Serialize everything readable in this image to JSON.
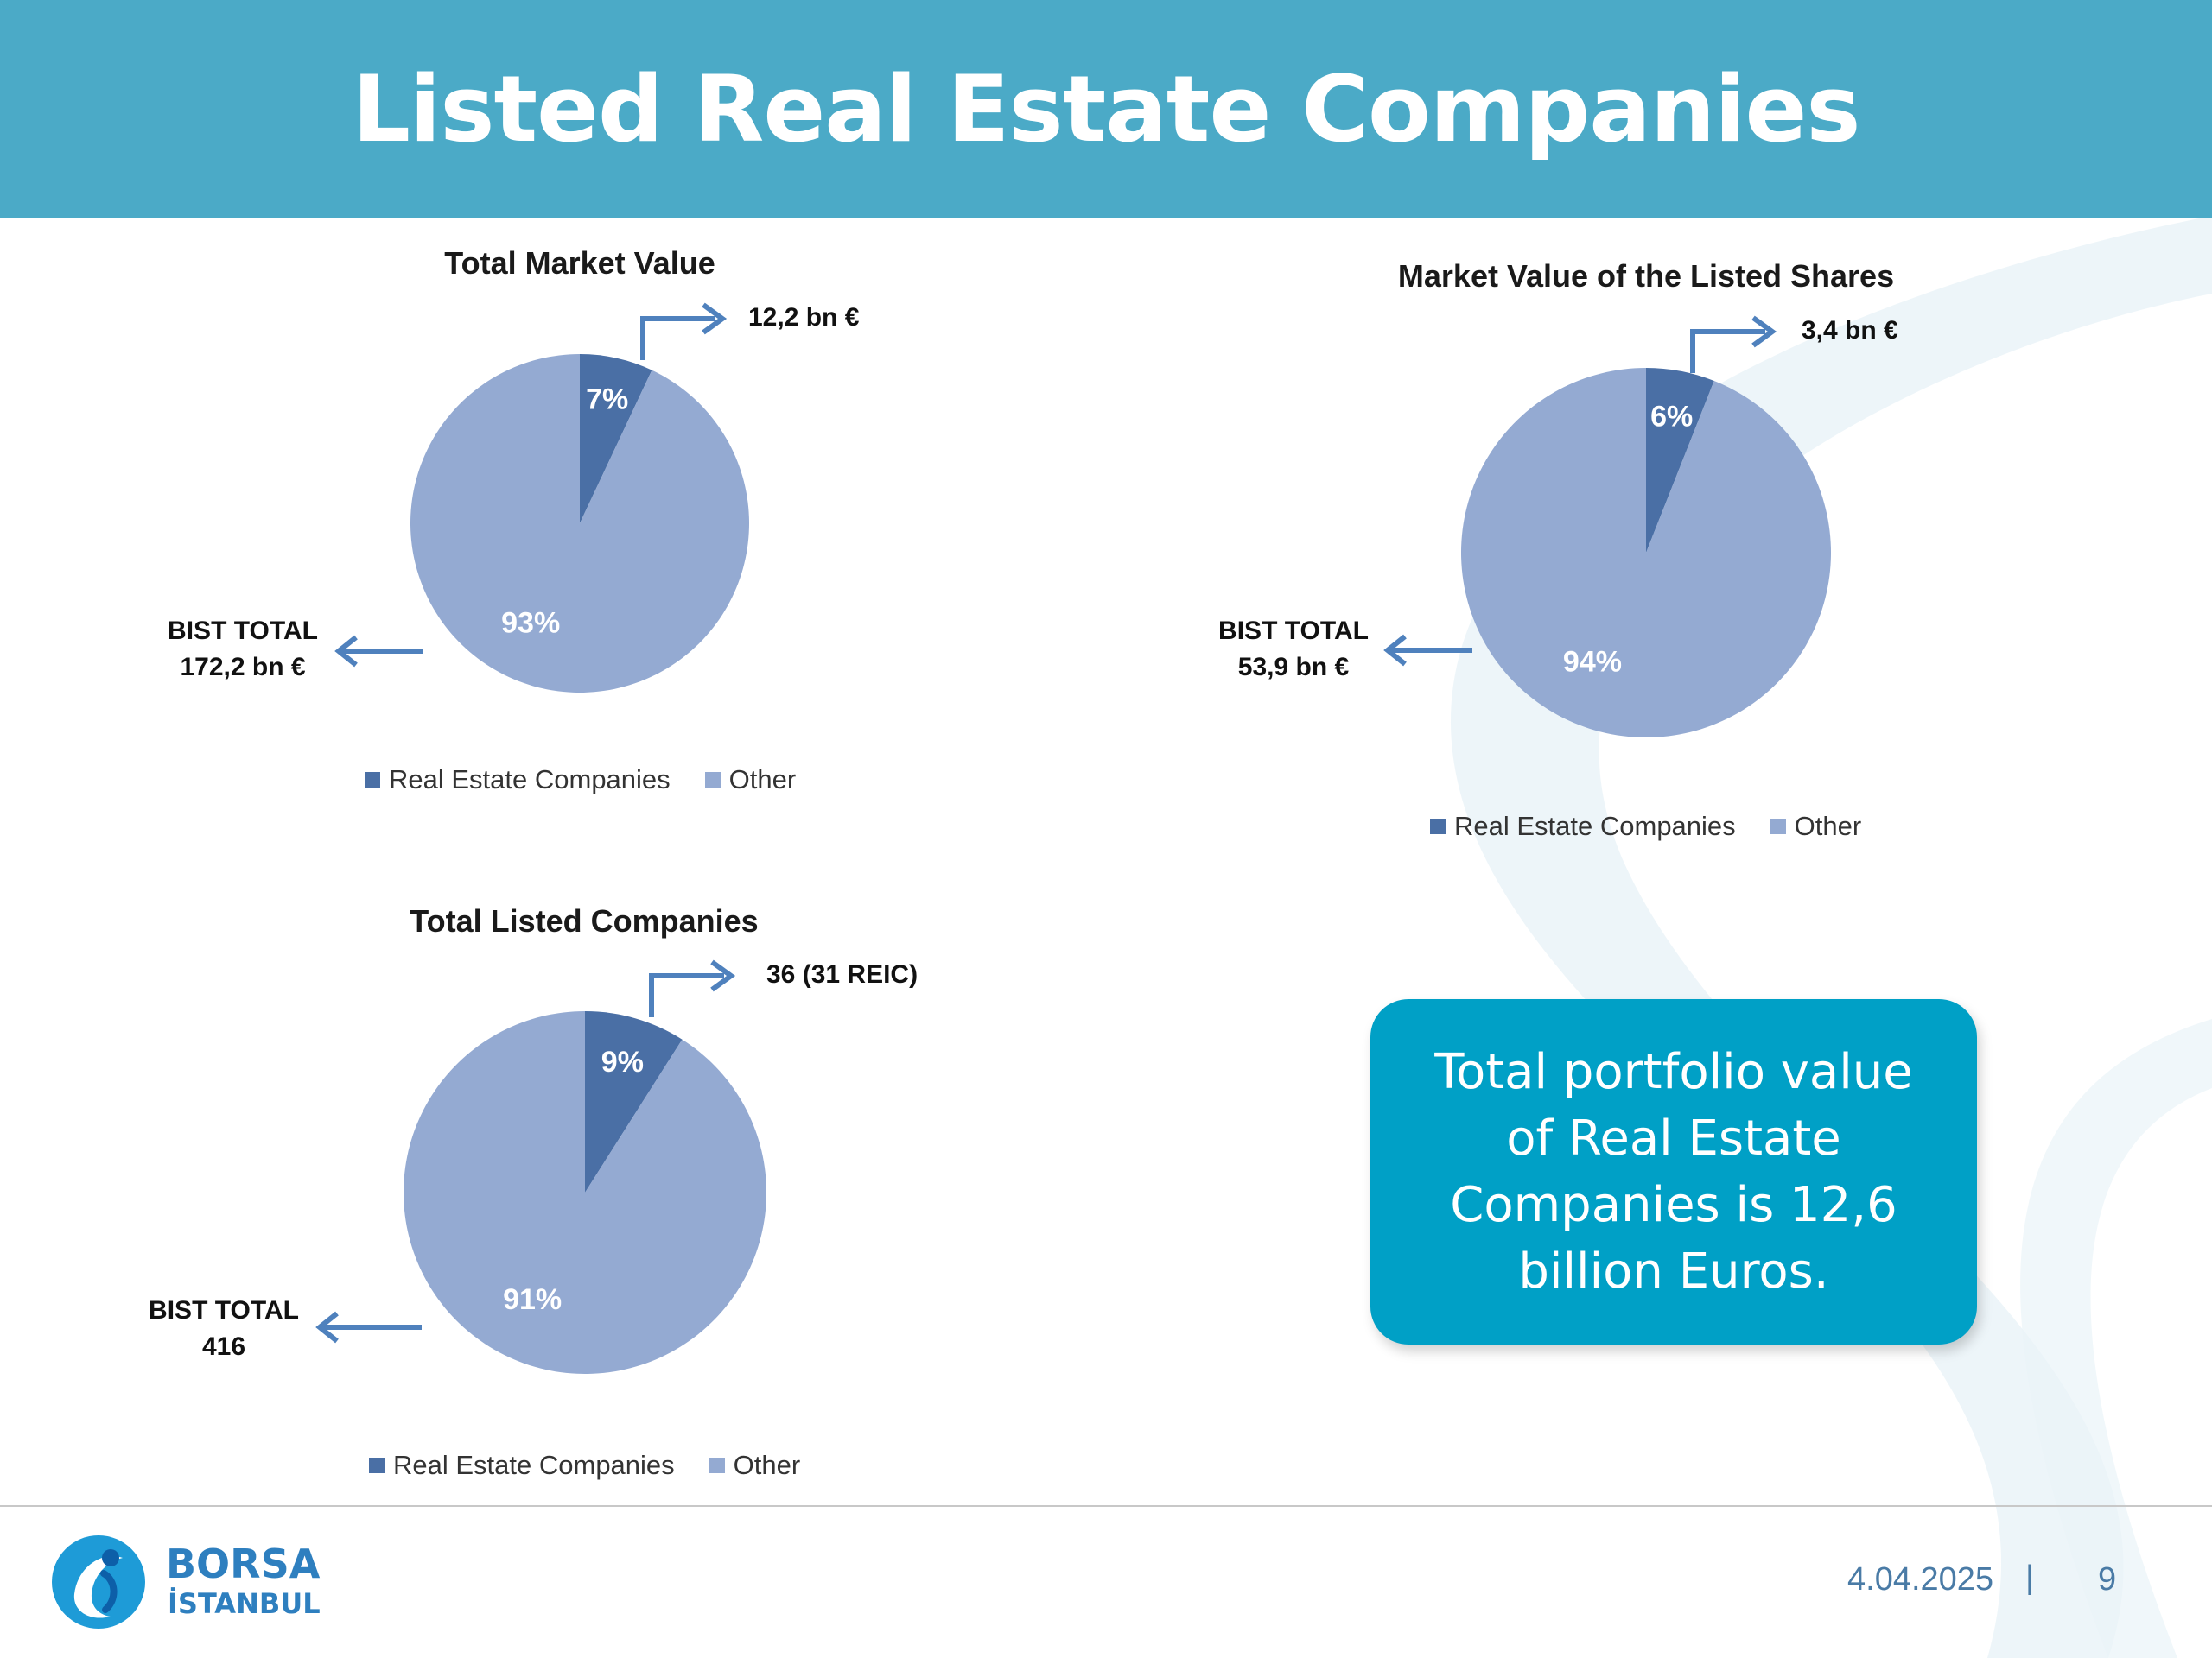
{
  "slide": {
    "title": "Listed Real Estate Companies",
    "footer_date": "4.04.2025",
    "footer_separator": "|",
    "page_number": "9",
    "logo": {
      "line1": "BORSA",
      "line2": "İSTANBUL"
    },
    "callout_text": "Total portfolio value of Real Estate Companies is 12,6 billion Euros."
  },
  "colors": {
    "header": "#4BAAC7",
    "real_estate": "#4A6FA5",
    "other": "#94AAD2",
    "arrow": "#4F81BD",
    "callout": "#00A0C6"
  },
  "chart_data": [
    {
      "type": "pie",
      "title": "Total Market Value",
      "categories": [
        "Real Estate Companies",
        "Other"
      ],
      "values": [
        7,
        93
      ],
      "value_labels": [
        "7%",
        "93%"
      ],
      "annotations": {
        "segment": "12,2 bn €",
        "total_line1": "BIST TOTAL",
        "total_line2": "172,2 bn €"
      },
      "legend": "bottom"
    },
    {
      "type": "pie",
      "title": "Market Value of the Listed Shares",
      "categories": [
        "Real Estate Companies",
        "Other"
      ],
      "values": [
        6,
        94
      ],
      "value_labels": [
        "6%",
        "94%"
      ],
      "annotations": {
        "segment": "3,4 bn €",
        "total_line1": "BIST TOTAL",
        "total_line2": "53,9 bn €"
      },
      "legend": "bottom"
    },
    {
      "type": "pie",
      "title": "Total Listed Companies",
      "categories": [
        "Real Estate Companies",
        "Other"
      ],
      "values": [
        9,
        91
      ],
      "value_labels": [
        "9%",
        "91%"
      ],
      "annotations": {
        "segment": "36 (31 REIC)",
        "total_line1": "BIST TOTAL",
        "total_line2": "416"
      },
      "legend": "bottom"
    }
  ]
}
